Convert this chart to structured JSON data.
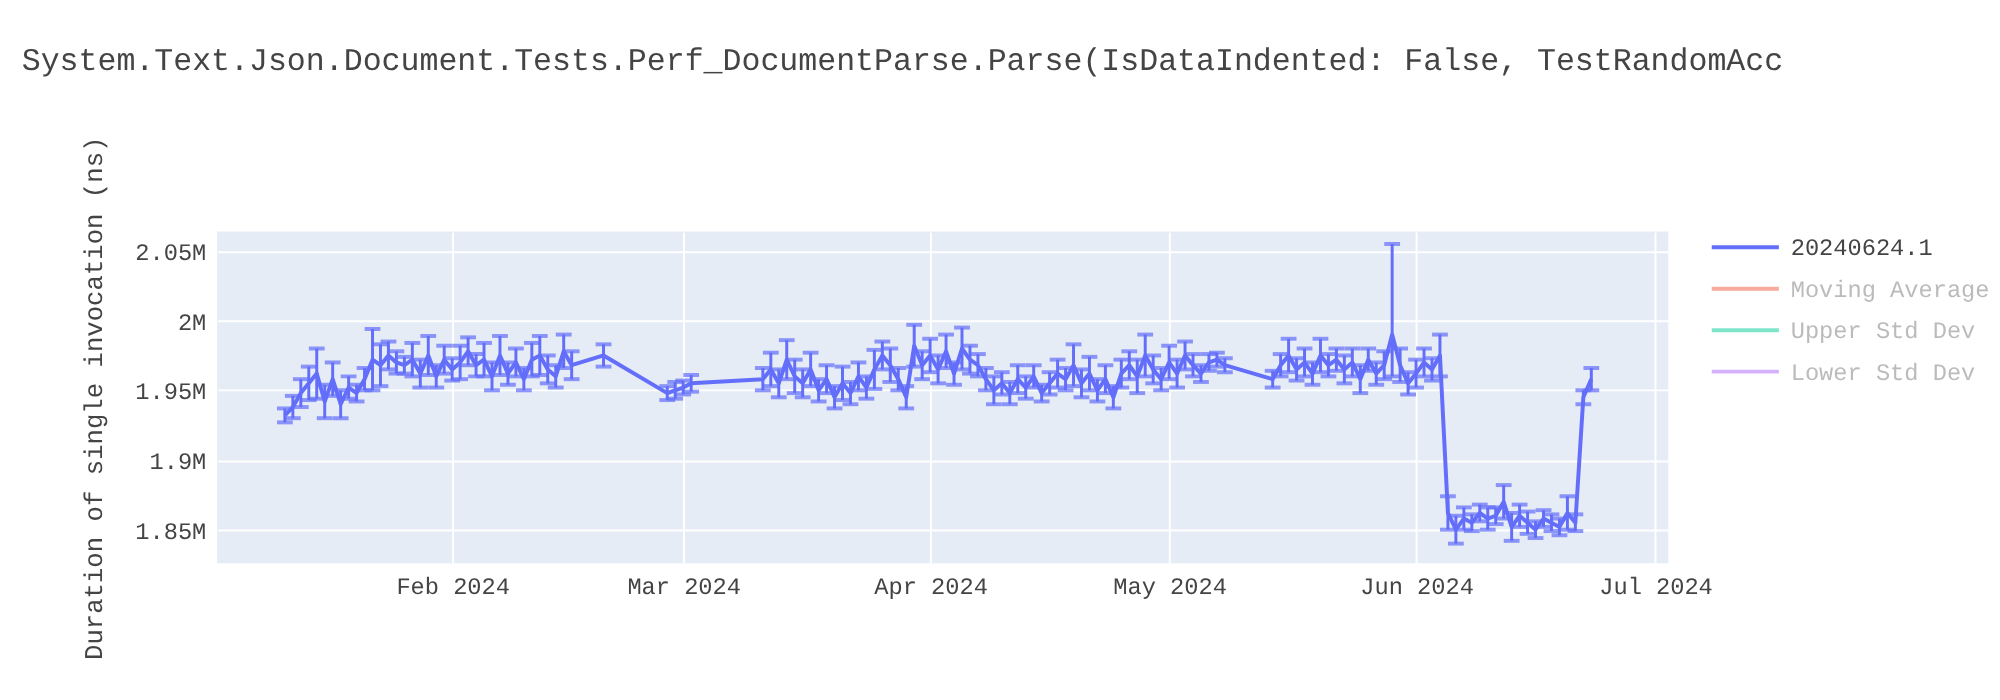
{
  "chart_data": {
    "type": "line",
    "title": "System.Text.Json.Document.Tests.Perf_DocumentParse.Parse(IsDataIndented: False, TestRandomAcc",
    "ylabel": "Duration of single invocation (ns)",
    "x": [
      "2024-01-11",
      "2024-01-12",
      "2024-01-13",
      "2024-01-14",
      "2024-01-15",
      "2024-01-16",
      "2024-01-17",
      "2024-01-18",
      "2024-01-19",
      "2024-01-20",
      "2024-01-21",
      "2024-01-22",
      "2024-01-23",
      "2024-01-24",
      "2024-01-25",
      "2024-01-26",
      "2024-01-27",
      "2024-01-28",
      "2024-01-29",
      "2024-01-30",
      "2024-01-31",
      "2024-02-01",
      "2024-02-02",
      "2024-02-03",
      "2024-02-04",
      "2024-02-05",
      "2024-02-06",
      "2024-02-07",
      "2024-02-08",
      "2024-02-09",
      "2024-02-10",
      "2024-02-11",
      "2024-02-12",
      "2024-02-13",
      "2024-02-14",
      "2024-02-15",
      "2024-02-16",
      "2024-02-20",
      "2024-02-28",
      "2024-02-29",
      "2024-03-01",
      "2024-03-02",
      "2024-03-11",
      "2024-03-12",
      "2024-03-13",
      "2024-03-14",
      "2024-03-15",
      "2024-03-16",
      "2024-03-17",
      "2024-03-18",
      "2024-03-19",
      "2024-03-20",
      "2024-03-21",
      "2024-03-22",
      "2024-03-23",
      "2024-03-24",
      "2024-03-25",
      "2024-03-26",
      "2024-03-27",
      "2024-03-28",
      "2024-03-29",
      "2024-03-30",
      "2024-03-31",
      "2024-04-01",
      "2024-04-02",
      "2024-04-03",
      "2024-04-04",
      "2024-04-05",
      "2024-04-06",
      "2024-04-07",
      "2024-04-08",
      "2024-04-09",
      "2024-04-10",
      "2024-04-11",
      "2024-04-12",
      "2024-04-13",
      "2024-04-14",
      "2024-04-15",
      "2024-04-16",
      "2024-04-17",
      "2024-04-18",
      "2024-04-19",
      "2024-04-20",
      "2024-04-21",
      "2024-04-22",
      "2024-04-23",
      "2024-04-24",
      "2024-04-25",
      "2024-04-26",
      "2024-04-27",
      "2024-04-28",
      "2024-04-29",
      "2024-04-30",
      "2024-05-01",
      "2024-05-02",
      "2024-05-03",
      "2024-05-04",
      "2024-05-05",
      "2024-05-06",
      "2024-05-07",
      "2024-05-08",
      "2024-05-14",
      "2024-05-15",
      "2024-05-16",
      "2024-05-17",
      "2024-05-18",
      "2024-05-19",
      "2024-05-20",
      "2024-05-21",
      "2024-05-22",
      "2024-05-23",
      "2024-05-24",
      "2024-05-25",
      "2024-05-26",
      "2024-05-27",
      "2024-05-28",
      "2024-05-29",
      "2024-05-30",
      "2024-05-31",
      "2024-06-01",
      "2024-06-02",
      "2024-06-03",
      "2024-06-04",
      "2024-06-05",
      "2024-06-06",
      "2024-06-07",
      "2024-06-08",
      "2024-06-09",
      "2024-06-10",
      "2024-06-11",
      "2024-06-12",
      "2024-06-13",
      "2024-06-14",
      "2024-06-15",
      "2024-06-16",
      "2024-06-17",
      "2024-06-18",
      "2024-06-19",
      "2024-06-20",
      "2024-06-21",
      "2024-06-22",
      "2024-06-23"
    ],
    "series": [
      {
        "name": "20240624.1",
        "color": "#636efa",
        "values": [
          1932000,
          1938000,
          1948000,
          1955000,
          1962000,
          1942000,
          1958000,
          1940000,
          1952000,
          1948000,
          1958000,
          1972000,
          1968000,
          1975000,
          1970000,
          1968000,
          1972000,
          1962000,
          1975000,
          1960000,
          1972000,
          1965000,
          1970000,
          1978000,
          1968000,
          1972000,
          1960000,
          1975000,
          1962000,
          1970000,
          1958000,
          1972000,
          1975000,
          1965000,
          1960000,
          1978000,
          1968000,
          1975000,
          1948000,
          1950000,
          1952000,
          1955000,
          1958000,
          1965000,
          1955000,
          1972000,
          1960000,
          1955000,
          1965000,
          1950000,
          1958000,
          1945000,
          1955000,
          1948000,
          1960000,
          1952000,
          1965000,
          1975000,
          1968000,
          1958000,
          1945000,
          1982000,
          1968000,
          1975000,
          1965000,
          1978000,
          1962000,
          1980000,
          1972000,
          1968000,
          1958000,
          1950000,
          1955000,
          1948000,
          1958000,
          1952000,
          1960000,
          1948000,
          1955000,
          1962000,
          1958000,
          1968000,
          1955000,
          1962000,
          1950000,
          1958000,
          1945000,
          1962000,
          1968000,
          1960000,
          1975000,
          1965000,
          1958000,
          1970000,
          1962000,
          1975000,
          1968000,
          1962000,
          1970000,
          1972000,
          1968000,
          1958000,
          1968000,
          1975000,
          1965000,
          1970000,
          1962000,
          1975000,
          1968000,
          1972000,
          1965000,
          1970000,
          1958000,
          1972000,
          1962000,
          1968000,
          1990000,
          1968000,
          1955000,
          1962000,
          1970000,
          1965000,
          1975000,
          1862000,
          1850000,
          1858000,
          1855000,
          1862000,
          1858000,
          1860000,
          1870000,
          1852000,
          1860000,
          1855000,
          1850000,
          1858000,
          1855000,
          1852000,
          1862000,
          1855000,
          1945000,
          1958000
        ],
        "errors": [
          5000,
          8000,
          10000,
          12000,
          18000,
          12000,
          12000,
          10000,
          8000,
          6000,
          8000,
          22000,
          15000,
          10000,
          8000,
          6000,
          12000,
          10000,
          14000,
          8000,
          10000,
          8000,
          12000,
          10000,
          8000,
          12000,
          10000,
          14000,
          8000,
          10000,
          8000,
          12000,
          14000,
          10000,
          8000,
          12000,
          10000,
          8000,
          5000,
          6000,
          5000,
          6000,
          8000,
          12000,
          10000,
          14000,
          12000,
          10000,
          12000,
          8000,
          10000,
          8000,
          12000,
          8000,
          10000,
          8000,
          14000,
          10000,
          12000,
          8000,
          8000,
          15000,
          10000,
          12000,
          10000,
          12000,
          8000,
          15000,
          10000,
          8000,
          8000,
          10000,
          8000,
          8000,
          10000,
          8000,
          8000,
          6000,
          8000,
          10000,
          8000,
          15000,
          10000,
          12000,
          8000,
          10000,
          8000,
          10000,
          10000,
          12000,
          15000,
          10000,
          8000,
          12000,
          10000,
          10000,
          8000,
          6000,
          6000,
          5000,
          5000,
          6000,
          8000,
          12000,
          8000,
          10000,
          8000,
          12000,
          8000,
          8000,
          10000,
          10000,
          10000,
          8000,
          8000,
          10000,
          [
            1960000,
            2055000
          ],
          12000,
          8000,
          10000,
          10000,
          8000,
          15000,
          12000,
          10000,
          8000,
          6000,
          6000,
          8000,
          6000,
          12000,
          10000,
          8000,
          8000,
          6000,
          6000,
          6000,
          6000,
          12000,
          6000,
          5000,
          8000
        ]
      },
      {
        "name": "Moving Average",
        "color": "#f7aa9d",
        "values": [
          null,
          null,
          null,
          null,
          null,
          null,
          null,
          null,
          null,
          null,
          null,
          null,
          null,
          null,
          null,
          null,
          null,
          null,
          null,
          null,
          null,
          null,
          null,
          null,
          null,
          null,
          null,
          null,
          null,
          null,
          null,
          null,
          null,
          null,
          null,
          null,
          null,
          null,
          null,
          null,
          null,
          null,
          null,
          null,
          null,
          null,
          null,
          null,
          null,
          null,
          null,
          null,
          null,
          null,
          null,
          null,
          null,
          null,
          null,
          null,
          null,
          null,
          null,
          null,
          null,
          null,
          null,
          null,
          null,
          null,
          null,
          null,
          null,
          null,
          null,
          null,
          null,
          null,
          null,
          null,
          null,
          null,
          null,
          null,
          null,
          null,
          null,
          null,
          null,
          null,
          null,
          null,
          null,
          null,
          null,
          null,
          null,
          null,
          null,
          null,
          null,
          null,
          null,
          null,
          null,
          null,
          null,
          null,
          null,
          null,
          null,
          null,
          null,
          null,
          null,
          null,
          null,
          null,
          null,
          null,
          null,
          null,
          null,
          null,
          null,
          null,
          null,
          null,
          null,
          null,
          null,
          null,
          null,
          null,
          null,
          null,
          null,
          null,
          null,
          null,
          null,
          null
        ]
      },
      {
        "name": "Upper Std Dev",
        "color": "#7fe5ca",
        "values": [
          null,
          null,
          null,
          null,
          null,
          null,
          null,
          null,
          null,
          null,
          null,
          null,
          null,
          null,
          null,
          null,
          null,
          null,
          null,
          null,
          null,
          null,
          null,
          null,
          null,
          null,
          null,
          null,
          null,
          null,
          null,
          null,
          null,
          null,
          null,
          null,
          null,
          null,
          null,
          null,
          null,
          null,
          null,
          null,
          null,
          null,
          null,
          null,
          null,
          null,
          null,
          null,
          null,
          null,
          null,
          null,
          null,
          null,
          null,
          null,
          null,
          null,
          null,
          null,
          null,
          null,
          null,
          null,
          null,
          null,
          null,
          null,
          null,
          null,
          null,
          null,
          null,
          null,
          null,
          null,
          null,
          null,
          null,
          null,
          null,
          null,
          null,
          null,
          null,
          null,
          null,
          null,
          null,
          null,
          null,
          null,
          null,
          null,
          null,
          null,
          null,
          null,
          null,
          null,
          null,
          null,
          null,
          null,
          null,
          null,
          null,
          null,
          null,
          null,
          null,
          null,
          null,
          null,
          null,
          null,
          null,
          null,
          null,
          null,
          null,
          null,
          null,
          null,
          null,
          null,
          null,
          null,
          null,
          null,
          null,
          null,
          null,
          null,
          null,
          null,
          null,
          null
        ]
      },
      {
        "name": "Lower Std Dev",
        "color": "#d5b1fc",
        "values": [
          null,
          null,
          null,
          null,
          null,
          null,
          null,
          null,
          null,
          null,
          null,
          null,
          null,
          null,
          null,
          null,
          null,
          null,
          null,
          null,
          null,
          null,
          null,
          null,
          null,
          null,
          null,
          null,
          null,
          null,
          null,
          null,
          null,
          null,
          null,
          null,
          null,
          null,
          null,
          null,
          null,
          null,
          null,
          null,
          null,
          null,
          null,
          null,
          null,
          null,
          null,
          null,
          null,
          null,
          null,
          null,
          null,
          null,
          null,
          null,
          null,
          null,
          null,
          null,
          null,
          null,
          null,
          null,
          null,
          null,
          null,
          null,
          null,
          null,
          null,
          null,
          null,
          null,
          null,
          null,
          null,
          null,
          null,
          null,
          null,
          null,
          null,
          null,
          null,
          null,
          null,
          null,
          null,
          null,
          null,
          null,
          null,
          null,
          null,
          null,
          null,
          null,
          null,
          null,
          null,
          null,
          null,
          null,
          null,
          null,
          null,
          null,
          null,
          null,
          null,
          null,
          null,
          null,
          null,
          null,
          null,
          null,
          null,
          null,
          null,
          null,
          null,
          null,
          null,
          null,
          null,
          null,
          null,
          null,
          null,
          null,
          null,
          null,
          null,
          null,
          null,
          null
        ]
      }
    ],
    "xlim": [
      "2024-01-02T12:00",
      "2024-07-02T16:00"
    ],
    "xticks": [
      {
        "value": "2024-02-01",
        "label": "Feb 2024"
      },
      {
        "value": "2024-03-01",
        "label": "Mar 2024"
      },
      {
        "value": "2024-04-01",
        "label": "Apr 2024"
      },
      {
        "value": "2024-05-01",
        "label": "May 2024"
      },
      {
        "value": "2024-06-01",
        "label": "Jun 2024"
      },
      {
        "value": "2024-07-01",
        "label": "Jul 2024"
      }
    ],
    "ylim": [
      1826000,
      2064000
    ],
    "yticks": [
      {
        "value": 1850000,
        "label": "1.85M"
      },
      {
        "value": 1900000,
        "label": "1.9M"
      },
      {
        "value": 1950000,
        "label": "1.95M"
      },
      {
        "value": 2000000,
        "label": "2M"
      },
      {
        "value": 2050000,
        "label": "2.05M"
      }
    ],
    "grid": true,
    "legend": "right",
    "line_style": "solid",
    "marker": "none"
  }
}
